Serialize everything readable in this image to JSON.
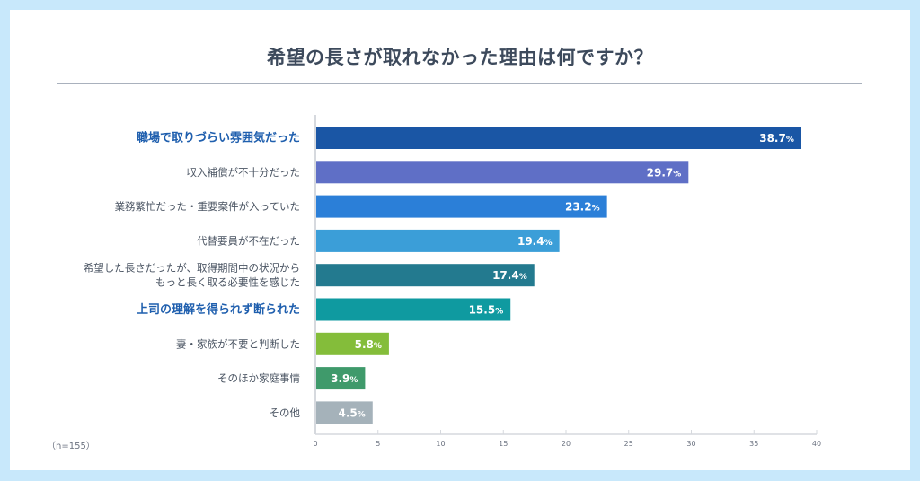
{
  "title": "希望の長さが取れなかった理由は何ですか？",
  "note": "（n=155）",
  "chart_data": {
    "type": "bar",
    "orientation": "horizontal",
    "title": "希望の長さが取れなかった理由は何ですか？",
    "xlabel": "",
    "ylabel": "",
    "xlim": [
      0,
      40
    ],
    "x_ticks": [
      0,
      5,
      10,
      15,
      20,
      25,
      30,
      35,
      40
    ],
    "grid": false,
    "value_suffix": "%",
    "sample_size": "n=155",
    "categories": [
      {
        "lines": [
          "職場で取りづらい雰囲気だった"
        ],
        "highlight": true
      },
      {
        "lines": [
          "収入補償が不十分だった"
        ],
        "highlight": false
      },
      {
        "lines": [
          "業務繁忙だった・重要案件が入っていた"
        ],
        "highlight": false
      },
      {
        "lines": [
          "代替要員が不在だった"
        ],
        "highlight": false
      },
      {
        "lines": [
          "希望した長さだったが、取得期間中の状況から",
          "もっと長く取る必要性を感じた"
        ],
        "highlight": false
      },
      {
        "lines": [
          "上司の理解を得られず断られた"
        ],
        "highlight": true
      },
      {
        "lines": [
          "妻・家族が不要と判断した"
        ],
        "highlight": false
      },
      {
        "lines": [
          "そのほか家庭事情"
        ],
        "highlight": false
      },
      {
        "lines": [
          "その他"
        ],
        "highlight": false
      }
    ],
    "values": [
      38.7,
      29.7,
      23.2,
      19.4,
      17.4,
      15.5,
      5.8,
      3.9,
      4.5
    ],
    "colors": [
      "#1a56a5",
      "#5f6fc6",
      "#2b7fd8",
      "#3b9ed8",
      "#237a8f",
      "#0f9aa0",
      "#84bd3a",
      "#3f9a6b",
      "#a5b2ba"
    ]
  }
}
